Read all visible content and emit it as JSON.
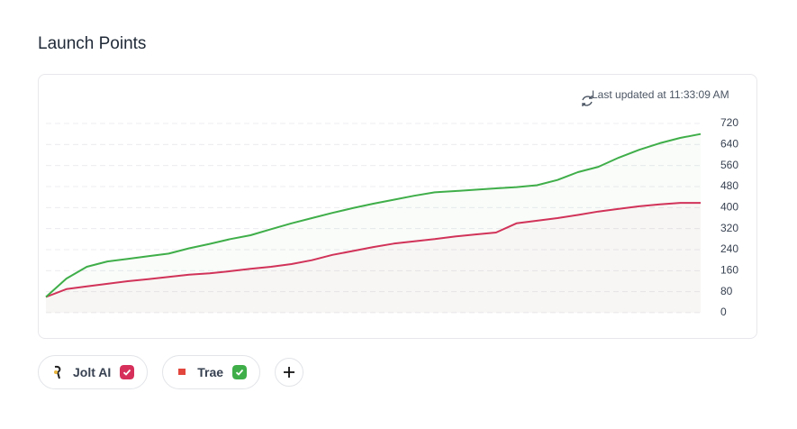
{
  "chart_data": {
    "type": "line",
    "title": "Launch Points",
    "subtitle": "Last updated at 11:33:09 AM",
    "ylim": [
      0,
      720
    ],
    "yticks": [
      0,
      80,
      160,
      240,
      320,
      400,
      480,
      560,
      640,
      720
    ],
    "grid": true,
    "series": [
      {
        "name": "Jolt AI",
        "color": "#d6305a",
        "values": [
          60,
          90,
          100,
          110,
          120,
          128,
          136,
          145,
          150,
          158,
          167,
          175,
          185,
          200,
          220,
          235,
          250,
          263,
          272,
          280,
          290,
          298,
          305,
          340,
          350,
          360,
          372,
          385,
          395,
          405,
          412,
          418,
          418
        ]
      },
      {
        "name": "Trae",
        "color": "#3fae49",
        "values": [
          60,
          130,
          175,
          195,
          205,
          215,
          225,
          245,
          262,
          280,
          295,
          318,
          340,
          360,
          380,
          398,
          415,
          430,
          445,
          458,
          463,
          468,
          473,
          478,
          485,
          505,
          535,
          555,
          590,
          620,
          645,
          665,
          680
        ]
      }
    ]
  }
}
